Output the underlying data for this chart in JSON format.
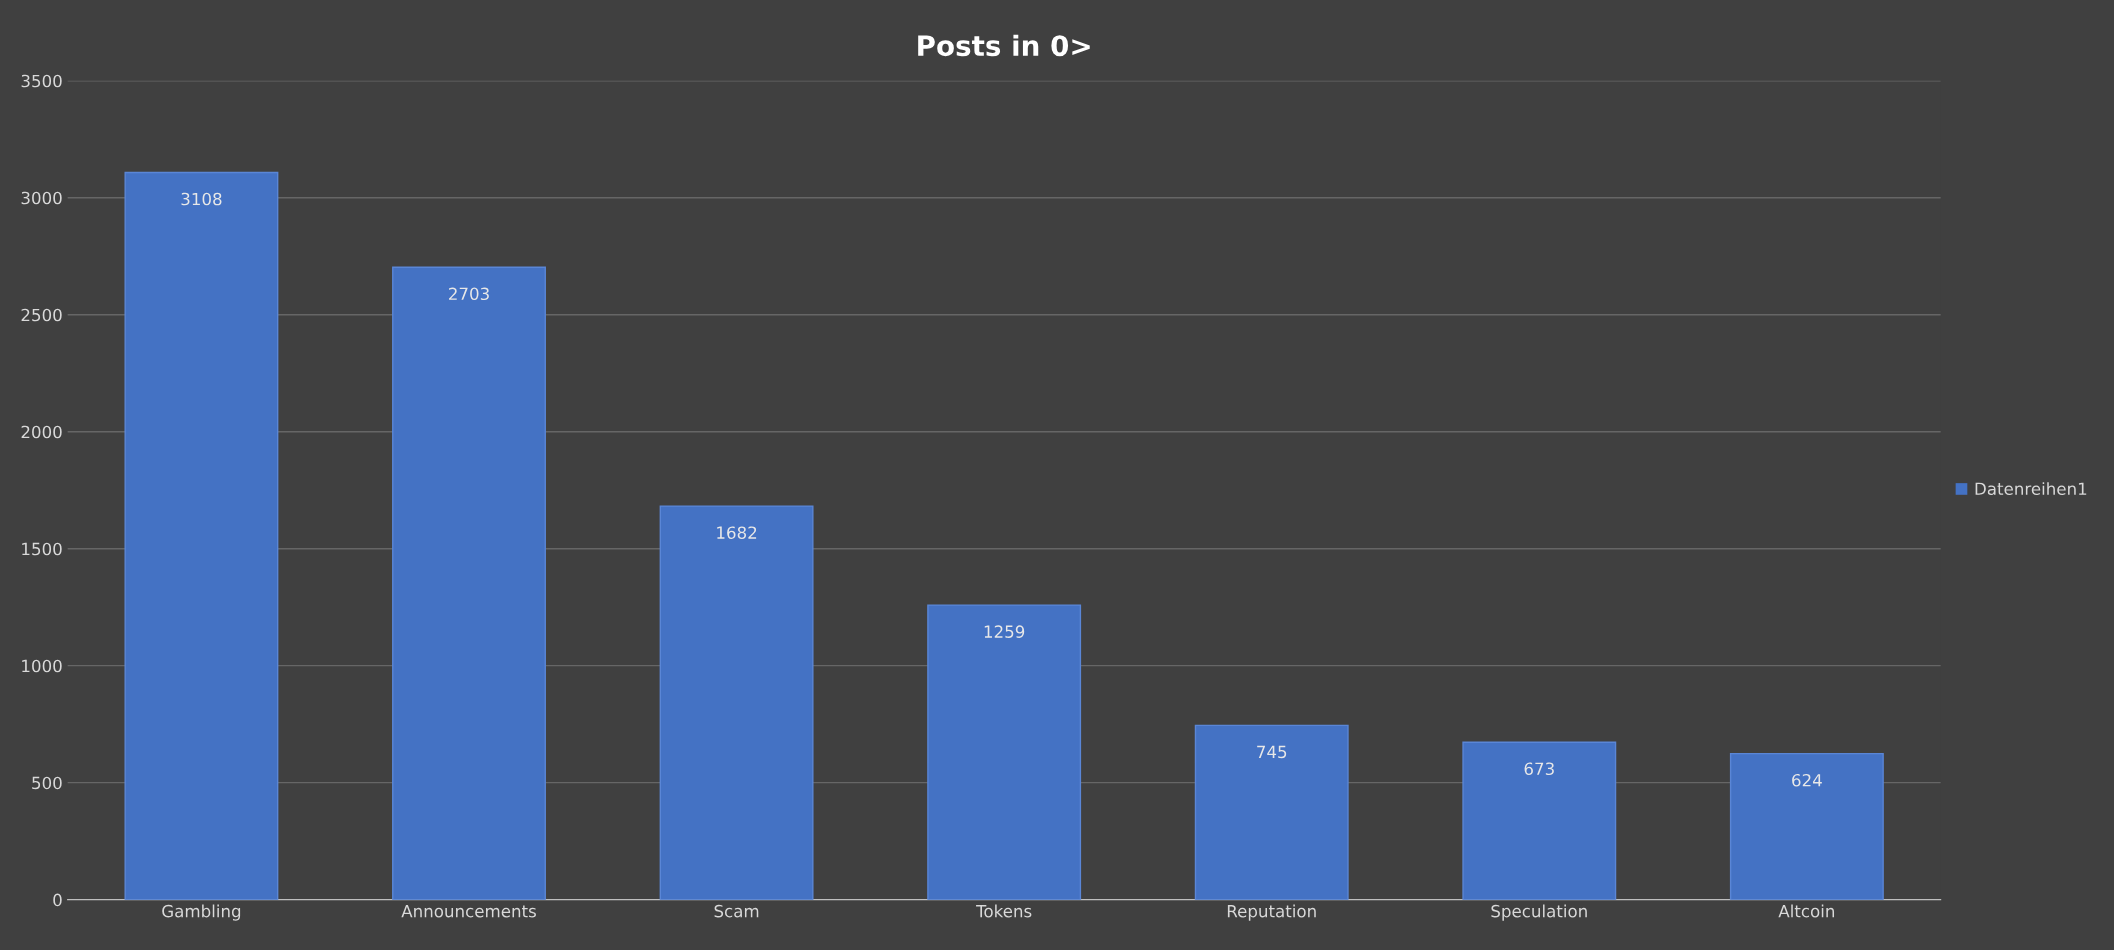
{
  "chart_data": {
    "type": "bar",
    "title": "Posts in 0>",
    "categories": [
      "Gambling",
      "Announcements",
      "Scam",
      "Tokens",
      "Reputation",
      "Speculation",
      "Altcoin"
    ],
    "series": [
      {
        "name": "Datenreihen1",
        "color": "#4472c4",
        "values": [
          3108,
          2703,
          1682,
          1259,
          745,
          673,
          624
        ]
      }
    ],
    "ylim": [
      0,
      3500
    ],
    "yticks": [
      0,
      500,
      1000,
      1500,
      2000,
      2500,
      3000,
      3500
    ],
    "grid": "y",
    "legend": "right",
    "data_labels": true
  }
}
